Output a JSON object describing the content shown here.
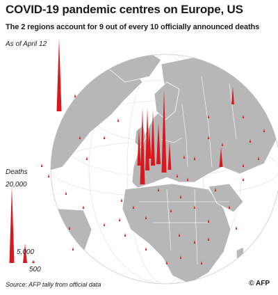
{
  "header": {
    "title": "COVID-19 pandemic centres on Europe, US",
    "subtitle": "The 2 regions account for 9 out of every 10 officially announced deaths",
    "date": "As of April 12"
  },
  "legend": {
    "title": "Deaths",
    "levels": [
      "20,000",
      "5,000",
      "500"
    ],
    "values": [
      20000,
      5000,
      500
    ]
  },
  "footer": {
    "source": "Source: AFP tally from official data",
    "credit": "© AFP"
  },
  "colors": {
    "ocean": "#ffffff",
    "land": "#b7b7b7",
    "border": "#ffffff",
    "graticule": "#d8d8d8",
    "spike": "#d7191f"
  }
}
